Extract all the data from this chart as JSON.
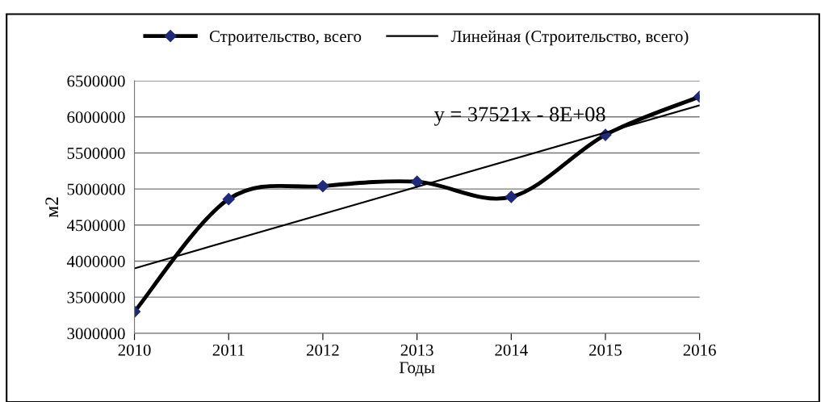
{
  "chart_data": {
    "type": "line",
    "xlabel": "Годы",
    "ylabel": "м2",
    "x": [
      2010,
      2011,
      2012,
      2013,
      2014,
      2015,
      2016
    ],
    "series": [
      {
        "name": "Строительство, всего",
        "color": "#000000",
        "marker": "diamond",
        "values": [
          3300000,
          4860000,
          5040000,
          5100000,
          4890000,
          5750000,
          6280000
        ]
      },
      {
        "name": "Линейная (Строительство, всего)",
        "color": "#000000",
        "marker": "none",
        "x": [
          2010,
          2016
        ],
        "values": [
          3900000,
          6160000
        ]
      }
    ],
    "annotations": [
      "y = 37521x - 8E+08"
    ],
    "xlim": [
      2010,
      2016
    ],
    "xticks": [
      2010,
      2011,
      2012,
      2013,
      2014,
      2015,
      2016
    ],
    "ylim": [
      3000000,
      6500000
    ],
    "yticks": [
      3000000,
      3500000,
      4000000,
      4500000,
      5000000,
      5500000,
      6000000,
      6500000
    ],
    "grid": "y",
    "legend": "top"
  }
}
